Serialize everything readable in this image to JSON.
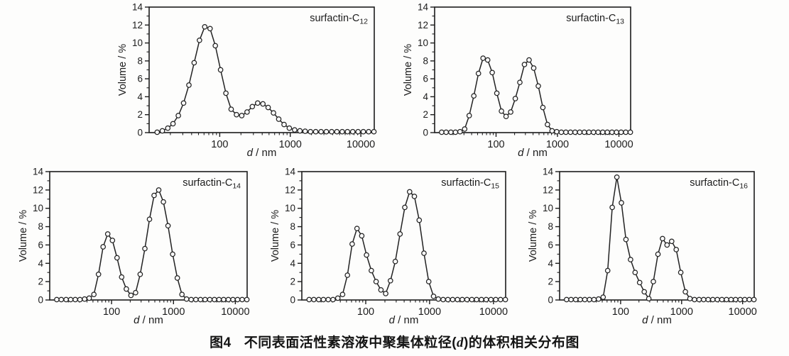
{
  "page": {
    "background": "#fdfdfc",
    "ink": "#1c1c1c",
    "line_color": "#222222",
    "marker_fill": "#ffffff"
  },
  "caption": {
    "prefix": "图4",
    "body_pre": "不同表面活性素溶液中聚集体粒径(",
    "d_symbol": "d",
    "body_post": ")的体积相关分布图"
  },
  "axes": {
    "y_label": "Volume / %",
    "x_label_d": "d",
    "x_label_unit": " / nm",
    "y_ticks": [
      0,
      2,
      4,
      6,
      8,
      10,
      12,
      14
    ],
    "y_minor_step": 1,
    "x_major_ticks": [
      100,
      1000,
      10000
    ],
    "ylim": [
      0,
      14
    ],
    "xlim": [
      10,
      15500
    ],
    "xscale": "log",
    "grid": false
  },
  "chart_data": [
    {
      "type": "line",
      "title_base": "surfactin-C",
      "title_sub": "12",
      "xlabel": "d / nm",
      "ylabel": "Volume / %",
      "xscale": "log",
      "ylim": [
        0,
        14
      ],
      "marker": "open-circle",
      "x": [
        13,
        15.4,
        18.4,
        21.8,
        25.9,
        30.8,
        36.6,
        43.5,
        51.7,
        61.4,
        73,
        86.7,
        103,
        122.4,
        145.5,
        172.9,
        205.4,
        244.1,
        290,
        344.6,
        409.5,
        486.6,
        578.2,
        687,
        816.4,
        970.1,
        1152.7,
        1369.8,
        1627.7,
        1934.2,
        2298.3,
        2731,
        3245.2,
        3856.2,
        4582.2,
        5444.9,
        6470,
        7688.2,
        9135.7,
        10855.6,
        12899.4,
        15328
      ],
      "values": [
        0.05,
        0.2,
        0.5,
        1.0,
        1.9,
        3.3,
        5.3,
        7.8,
        10.3,
        11.8,
        11.6,
        9.7,
        7.0,
        4.4,
        2.6,
        2.0,
        1.9,
        2.3,
        2.9,
        3.3,
        3.2,
        2.8,
        2.2,
        1.5,
        0.9,
        0.5,
        0.3,
        0.2,
        0.15,
        0.1,
        0.1,
        0.1,
        0.1,
        0.1,
        0.1,
        0.1,
        0.1,
        0.1,
        0.1,
        0.1,
        0.1,
        0.1
      ],
      "peaks": [
        {
          "d": 60,
          "volume": 11.8
        },
        {
          "d": 330,
          "volume": 3.3
        }
      ]
    },
    {
      "type": "line",
      "title_base": "surfactin-C",
      "title_sub": "13",
      "xlabel": "d / nm",
      "ylabel": "Volume / %",
      "xscale": "log",
      "ylim": [
        0,
        14
      ],
      "marker": "open-circle",
      "x": [
        13,
        15.4,
        18.4,
        21.8,
        25.9,
        30.8,
        36.6,
        43.5,
        51.7,
        61.4,
        73,
        86.7,
        103,
        122.4,
        145.5,
        172.9,
        205.4,
        244.1,
        290,
        344.6,
        409.5,
        486.6,
        578.2,
        687,
        816.4,
        970.1,
        1152.7,
        1369.8,
        1627.7,
        1934.2,
        2298.3,
        2731,
        3245.2,
        3856.2,
        4582.2,
        5444.9,
        6470,
        7688.2,
        9135.7,
        10855.6,
        12899.4,
        15328
      ],
      "values": [
        0.05,
        0.05,
        0.05,
        0.05,
        0.1,
        0.4,
        1.9,
        4.1,
        6.6,
        8.3,
        8.1,
        6.7,
        4.4,
        2.4,
        1.8,
        2.3,
        3.8,
        5.6,
        7.6,
        8.1,
        7.2,
        5.2,
        2.8,
        0.9,
        0.2,
        0.1,
        0.05,
        0.05,
        0.05,
        0.05,
        0.05,
        0.05,
        0.05,
        0.05,
        0.05,
        0.05,
        0.05,
        0.05,
        0.05,
        0.05,
        0.05,
        0.05
      ],
      "peaks": [
        {
          "d": 60,
          "volume": 8.3
        },
        {
          "d": 300,
          "volume": 8.1
        }
      ]
    },
    {
      "type": "line",
      "title_base": "surfactin-C",
      "title_sub": "14",
      "xlabel": "d / nm",
      "ylabel": "Volume / %",
      "xscale": "log",
      "ylim": [
        0,
        14
      ],
      "marker": "open-circle",
      "x": [
        13,
        15.4,
        18.4,
        21.8,
        25.9,
        30.8,
        36.6,
        43.5,
        51.7,
        61.4,
        73,
        86.7,
        103,
        122.4,
        145.5,
        172.9,
        205.4,
        244.1,
        290,
        344.6,
        409.5,
        486.6,
        578.2,
        687,
        816.4,
        970.1,
        1152.7,
        1369.8,
        1627.7,
        1934.2,
        2298.3,
        2731,
        3245.2,
        3856.2,
        4582.2,
        5444.9,
        6470,
        7688.2,
        9135.7,
        10855.6,
        12899.4,
        15328
      ],
      "values": [
        0.05,
        0.05,
        0.05,
        0.05,
        0.05,
        0.05,
        0.1,
        0.2,
        0.6,
        2.8,
        5.8,
        7.2,
        6.5,
        4.6,
        2.5,
        1.2,
        0.5,
        0.8,
        2.8,
        5.6,
        8.8,
        11.4,
        12.0,
        10.7,
        8.1,
        5.0,
        2.4,
        0.6,
        0.1,
        0.05,
        0.05,
        0.05,
        0.05,
        0.05,
        0.05,
        0.05,
        0.05,
        0.05,
        0.05,
        0.05,
        0.05,
        0.05
      ],
      "peaks": [
        {
          "d": 90,
          "volume": 7.2
        },
        {
          "d": 550,
          "volume": 12.0
        }
      ]
    },
    {
      "type": "line",
      "title_base": "surfactin-C",
      "title_sub": "15",
      "xlabel": "d / nm",
      "ylabel": "Volume / %",
      "xscale": "log",
      "ylim": [
        0,
        14
      ],
      "marker": "open-circle",
      "x": [
        13,
        15.4,
        18.4,
        21.8,
        25.9,
        30.8,
        36.6,
        43.5,
        51.7,
        61.4,
        73,
        86.7,
        103,
        122.4,
        145.5,
        172.9,
        205.4,
        244.1,
        290,
        344.6,
        409.5,
        486.6,
        578.2,
        687,
        816.4,
        970.1,
        1152.7,
        1369.8,
        1627.7,
        1934.2,
        2298.3,
        2731,
        3245.2,
        3856.2,
        4582.2,
        5444.9,
        6470,
        7688.2,
        9135.7,
        10855.6,
        12899.4,
        15328
      ],
      "values": [
        0.05,
        0.05,
        0.05,
        0.05,
        0.05,
        0.05,
        0.2,
        0.6,
        2.7,
        6.1,
        7.8,
        7.0,
        4.9,
        3.2,
        2.0,
        1.1,
        0.7,
        2.1,
        4.2,
        7.2,
        10.1,
        11.8,
        11.3,
        8.7,
        5.1,
        2.0,
        0.4,
        0.1,
        0.05,
        0.05,
        0.05,
        0.05,
        0.05,
        0.05,
        0.05,
        0.05,
        0.05,
        0.05,
        0.05,
        0.05,
        0.05,
        0.05
      ],
      "peaks": [
        {
          "d": 73,
          "volume": 7.8
        },
        {
          "d": 470,
          "volume": 11.8
        }
      ]
    },
    {
      "type": "line",
      "title_base": "surfactin-C",
      "title_sub": "16",
      "xlabel": "d / nm",
      "ylabel": "Volume / %",
      "xscale": "log",
      "ylim": [
        0,
        14
      ],
      "marker": "open-circle",
      "x": [
        13,
        15.4,
        18.4,
        21.8,
        25.9,
        30.8,
        36.6,
        43.5,
        51.7,
        61.4,
        73,
        86.7,
        103,
        122.4,
        145.5,
        172.9,
        205.4,
        244.1,
        290,
        344.6,
        409.5,
        486.6,
        578.2,
        687,
        816.4,
        970.1,
        1152.7,
        1369.8,
        1627.7,
        1934.2,
        2298.3,
        2731,
        3245.2,
        3856.2,
        4582.2,
        5444.9,
        6470,
        7688.2,
        9135.7,
        10855.6,
        12899.4,
        15328
      ],
      "values": [
        0.05,
        0.05,
        0.05,
        0.05,
        0.05,
        0.05,
        0.05,
        0.1,
        0.3,
        3.2,
        10.1,
        13.4,
        10.6,
        6.6,
        4.4,
        3.0,
        1.9,
        0.9,
        0.15,
        2.0,
        5.0,
        6.7,
        6.0,
        6.4,
        5.5,
        3.0,
        0.9,
        0.15,
        0.05,
        0.05,
        0.05,
        0.05,
        0.05,
        0.05,
        0.05,
        0.05,
        0.05,
        0.05,
        0.05,
        0.05,
        0.05,
        0.05
      ],
      "peaks": [
        {
          "d": 85,
          "volume": 13.4
        },
        {
          "d": 480,
          "volume": 6.7
        },
        {
          "d": 690,
          "volume": 6.4
        }
      ]
    }
  ]
}
